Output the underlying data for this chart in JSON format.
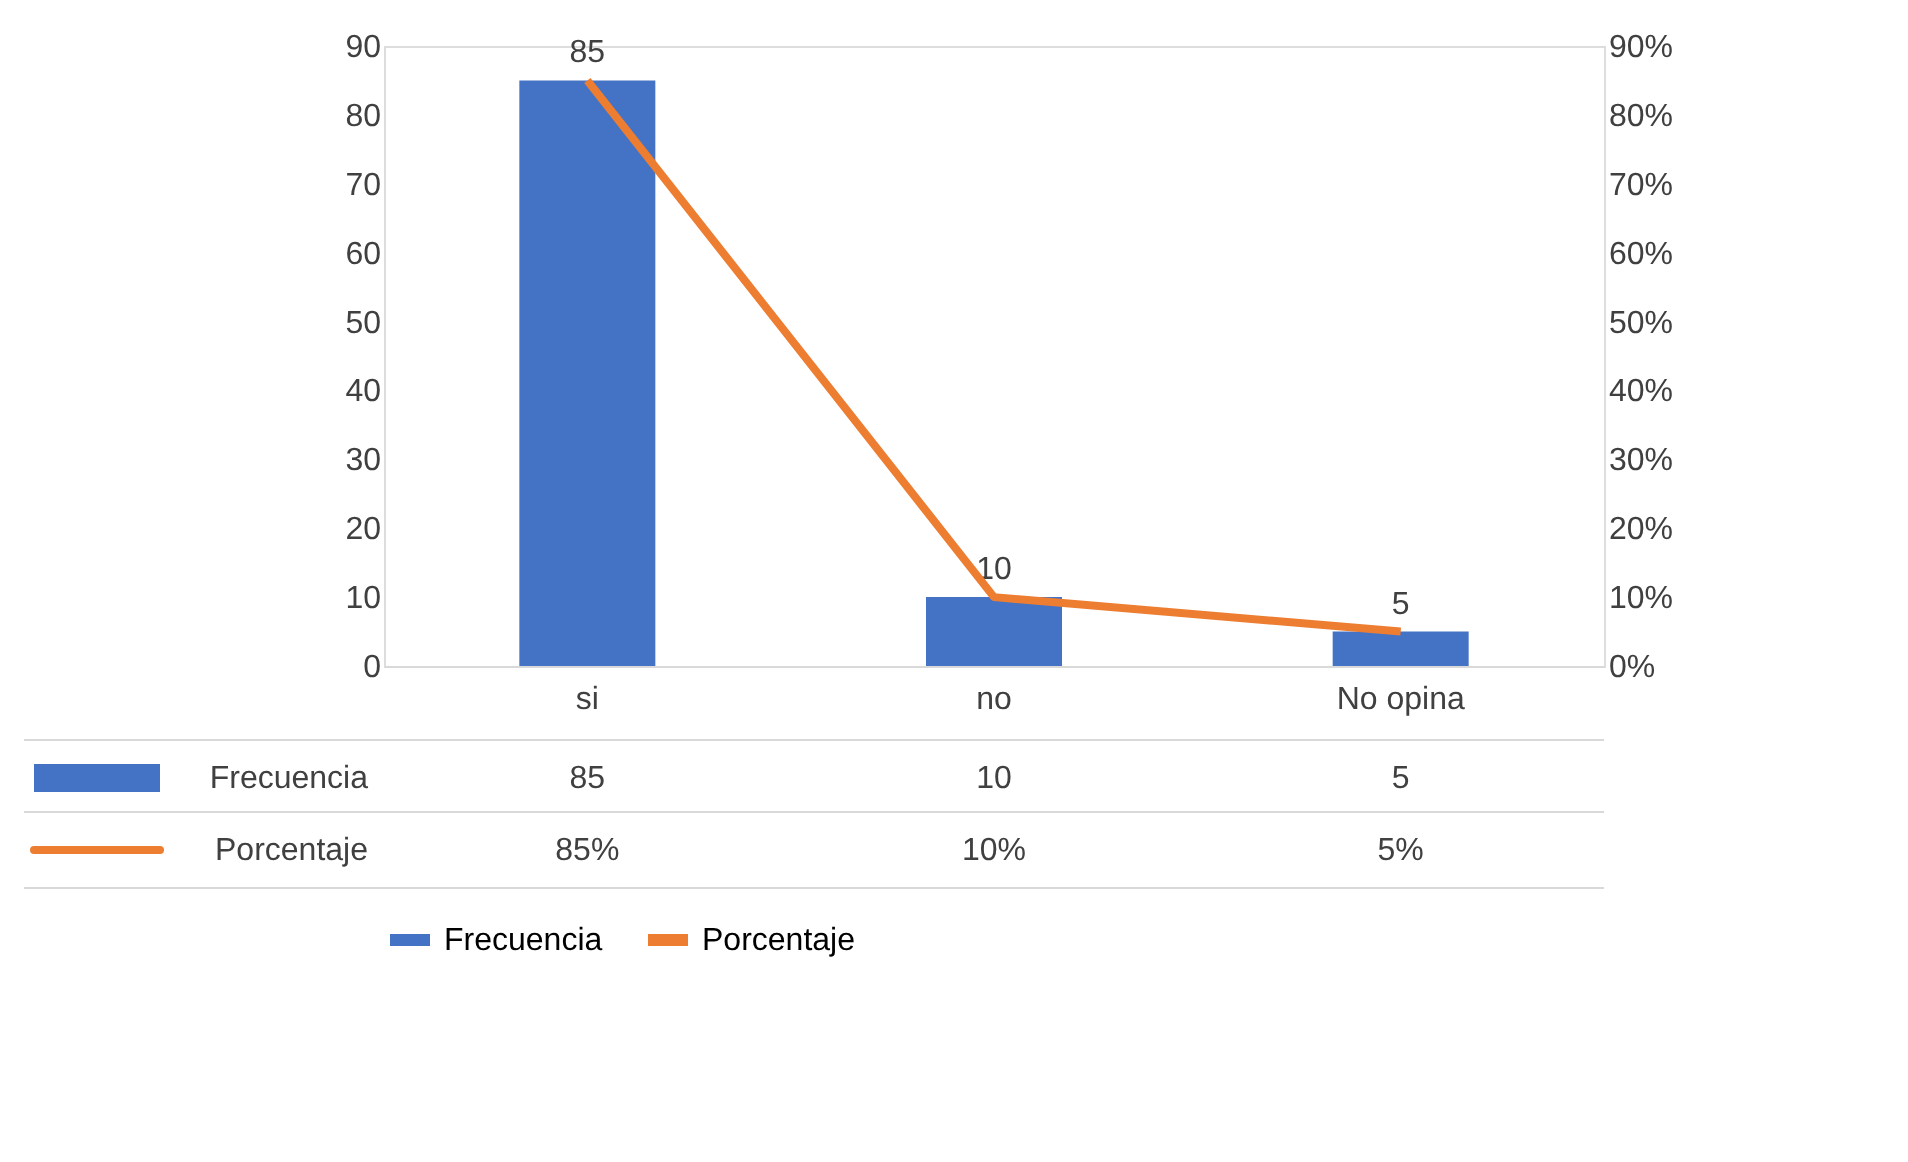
{
  "chart_data": {
    "type": "bar",
    "categories": [
      "si",
      "no",
      "No opina"
    ],
    "series": [
      {
        "name": "Frecuencia",
        "color": "#4472c4",
        "values": [
          85,
          10,
          5
        ],
        "value_labels": [
          "85",
          "10",
          "5"
        ]
      },
      {
        "name": "Porcentaje",
        "type": "line",
        "axis": "y2",
        "color": "#ed7d31",
        "values": [
          85,
          10,
          5
        ],
        "value_labels": [
          "85%",
          "10%",
          "5%"
        ],
        "marker": "none",
        "line_style": "solid"
      }
    ],
    "ylim": [
      0,
      90
    ],
    "yticks": [
      0,
      10,
      20,
      30,
      40,
      50,
      60,
      70,
      80,
      90
    ],
    "y2lim": [
      0,
      90
    ],
    "y2ticks": [
      {
        "value": 0,
        "label": "0%"
      },
      {
        "value": 10,
        "label": "10%"
      },
      {
        "value": 20,
        "label": "20%"
      },
      {
        "value": 30,
        "label": "30%"
      },
      {
        "value": 40,
        "label": "40%"
      },
      {
        "value": 50,
        "label": "50%"
      },
      {
        "value": 60,
        "label": "60%"
      },
      {
        "value": 70,
        "label": "70%"
      },
      {
        "value": 80,
        "label": "80%"
      },
      {
        "value": 90,
        "label": "90%"
      }
    ],
    "grid": false,
    "legend": "bottom"
  }
}
